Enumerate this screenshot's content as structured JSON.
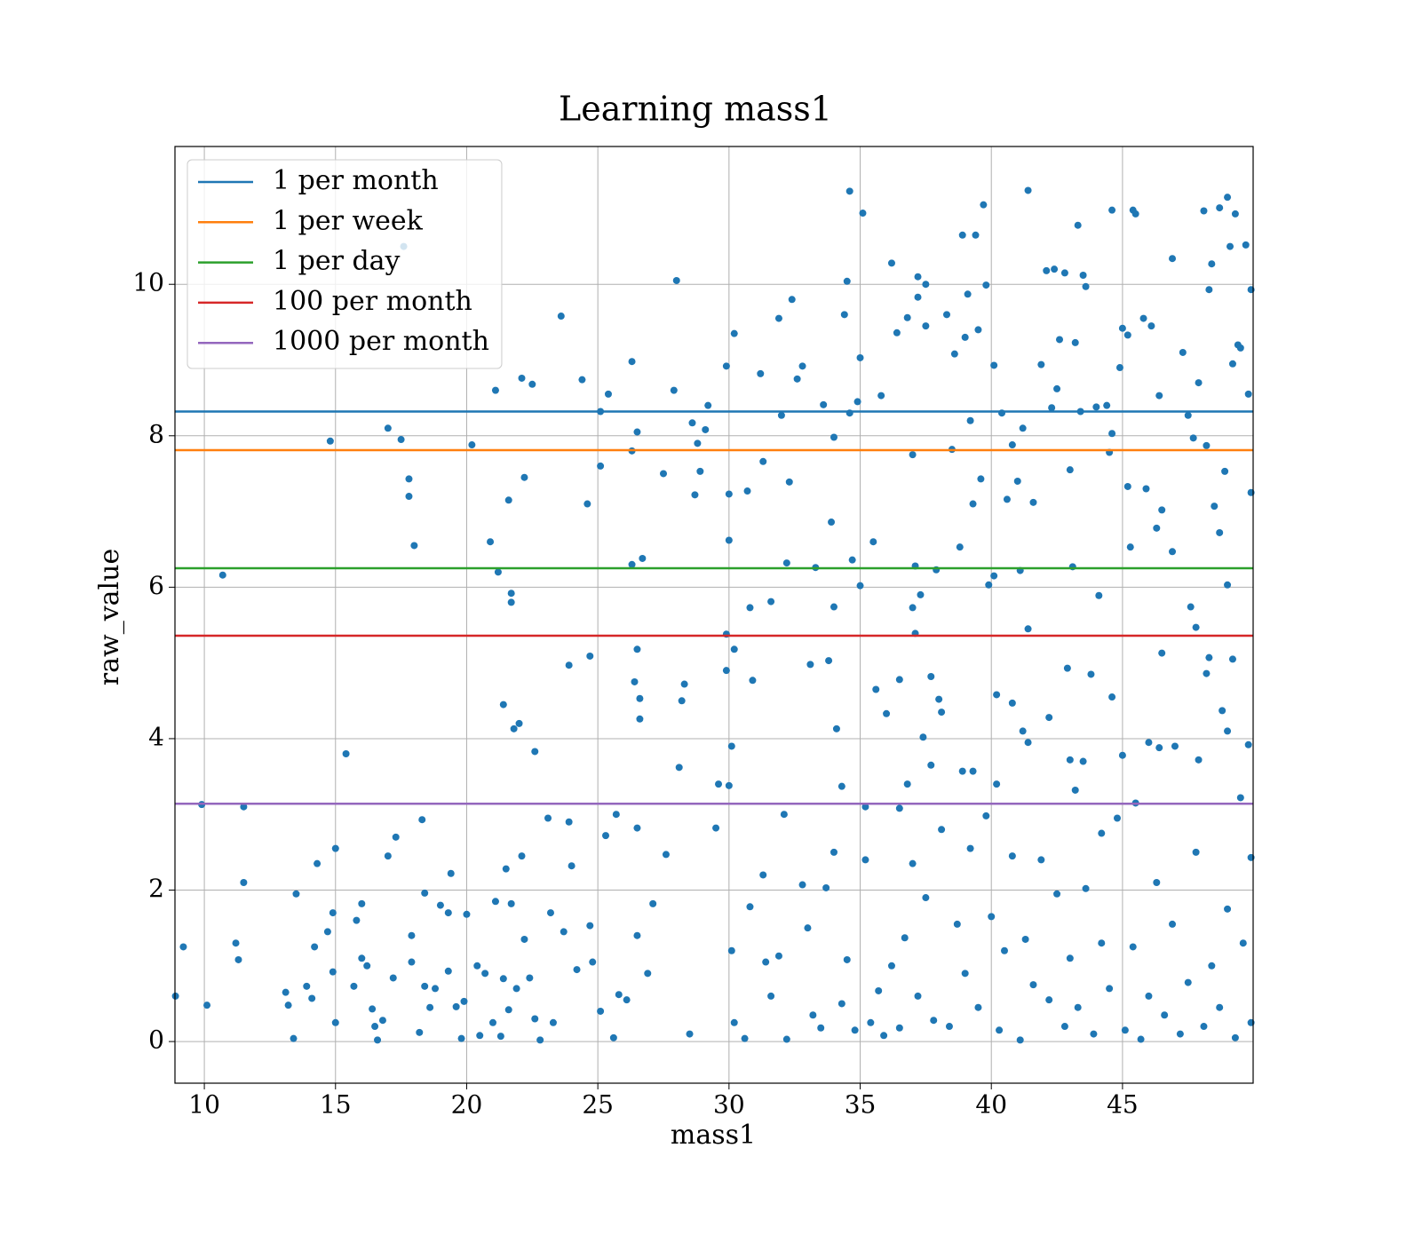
{
  "chart_data": {
    "type": "scatter",
    "title": "Learning mass1",
    "x_label": "mass1",
    "y_label": "raw_value",
    "point_color": "#1f77b4",
    "grid": true,
    "legend": "upper left",
    "xlim": [
      8.88,
      49.98
    ],
    "ylim": [
      -0.55,
      11.82
    ],
    "xticks": [
      10,
      15,
      20,
      25,
      30,
      35,
      40,
      45
    ],
    "yticks": [
      0,
      2,
      4,
      6,
      8,
      10
    ],
    "lines": [
      {
        "name": "1 per month",
        "color": "#1f77b4",
        "value": 8.32
      },
      {
        "name": "1 per week",
        "color": "#ff7f0e",
        "value": 7.81
      },
      {
        "name": "1 per day",
        "color": "#2ca02c",
        "value": 6.25
      },
      {
        "name": "100 per month",
        "color": "#d62728",
        "value": 5.36
      },
      {
        "name": "1000 per month",
        "color": "#9467bd",
        "value": 3.14
      }
    ],
    "x": [
      8.9,
      9.2,
      9.9,
      10.1,
      10.7,
      11.2,
      11.3,
      11.5,
      11.5,
      13.1,
      13.2,
      13.4,
      13.5,
      13.9,
      14.1,
      14.2,
      14.3,
      14.7,
      14.8,
      14.9,
      14.9,
      15.0,
      15.0,
      15.4,
      15.7,
      15.8,
      16.0,
      16.0,
      16.2,
      16.4,
      16.5,
      16.6,
      16.8,
      17.0,
      17.0,
      17.2,
      17.3,
      17.5,
      17.6,
      17.8,
      17.8,
      17.9,
      17.9,
      18.0,
      18.2,
      18.3,
      18.4,
      18.4,
      18.6,
      18.8,
      19.0,
      19.3,
      19.3,
      19.4,
      19.6,
      19.8,
      19.9,
      20.0,
      20.2,
      20.4,
      20.5,
      20.7,
      20.9,
      21.0,
      21.1,
      21.1,
      21.2,
      21.3,
      21.4,
      21.4,
      21.5,
      21.6,
      21.6,
      21.7,
      21.7,
      21.7,
      21.8,
      21.9,
      22.0,
      22.1,
      22.2,
      22.1,
      22.2,
      22.4,
      22.5,
      22.6,
      22.6,
      22.8,
      23.1,
      23.2,
      23.3,
      23.6,
      23.7,
      23.9,
      23.9,
      24.0,
      24.2,
      24.4,
      24.6,
      24.7,
      24.7,
      24.8,
      25.1,
      25.1,
      25.1,
      25.3,
      25.4,
      25.6,
      25.7,
      25.8,
      26.1,
      26.3,
      26.3,
      26.3,
      26.5,
      26.4,
      26.5,
      26.6,
      26.6,
      26.7,
      26.5,
      26.5,
      26.9,
      27.1,
      27.5,
      27.6,
      27.9,
      28.0,
      28.1,
      28.2,
      28.3,
      28.5,
      28.6,
      28.7,
      28.8,
      28.9,
      29.2,
      29.1,
      29.5,
      29.6,
      29.9,
      29.9,
      29.9,
      30.0,
      30.0,
      30.0,
      30.1,
      30.2,
      30.2,
      30.1,
      30.2,
      30.6,
      30.7,
      30.8,
      30.9,
      31.2,
      31.3,
      31.3,
      31.6,
      31.9,
      32.0,
      32.2,
      32.3,
      32.4,
      32.6,
      32.8,
      33.1,
      33.3,
      33.6,
      33.8,
      33.9,
      34.0,
      34.0,
      34.1,
      34.3,
      34.4,
      34.5,
      34.6,
      34.6,
      34.7,
      34.9,
      35.0,
      35.1,
      35.0,
      35.2,
      35.5,
      35.6,
      35.8,
      36.0,
      36.2,
      36.4,
      36.5,
      36.8,
      37.0,
      37.1,
      37.1,
      37.2,
      37.2,
      37.3,
      37.5,
      37.5,
      37.0,
      37.7,
      37.9,
      38.0,
      38.3,
      38.5,
      38.6,
      38.8,
      38.9,
      39.0,
      39.1,
      39.2,
      39.3,
      39.4,
      39.5,
      39.6,
      39.7,
      39.8,
      39.9,
      40.1,
      40.1,
      40.2,
      40.4,
      40.6,
      40.8,
      41.0,
      41.1,
      41.2,
      41.4,
      41.4,
      41.6,
      41.9,
      42.1,
      42.3,
      42.4,
      42.5,
      42.6,
      42.8,
      43.0,
      43.1,
      43.2,
      43.3,
      43.4,
      43.5,
      43.6,
      44.0,
      44.1,
      44.4,
      44.5,
      44.6,
      44.6,
      44.9,
      45.0,
      45.2,
      45.2,
      45.3,
      45.4,
      45.5,
      45.8,
      45.9,
      46.1,
      46.3,
      46.4,
      46.5,
      46.5,
      46.9,
      46.9,
      47.3,
      47.5,
      47.6,
      47.7,
      47.8,
      47.9,
      48.1,
      48.2,
      48.3,
      48.4,
      48.5,
      48.7,
      48.7,
      48.9,
      49.0,
      49.0,
      49.1,
      49.2,
      49.3,
      49.4,
      49.5,
      49.7,
      49.8,
      49.9,
      49.9,
      30.8,
      31.4,
      31.6,
      31.9,
      32.1,
      32.2,
      32.8,
      33.0,
      33.2,
      33.5,
      33.7,
      34.0,
      34.3,
      34.5,
      34.8,
      35.2,
      35.4,
      35.7,
      35.9,
      36.2,
      36.5,
      36.7,
      37.0,
      37.2,
      37.5,
      37.8,
      38.1,
      38.4,
      38.7,
      39.0,
      39.2,
      39.5,
      39.8,
      40.0,
      40.3,
      40.5,
      40.8,
      41.1,
      41.3,
      41.6,
      41.9,
      42.2,
      42.5,
      42.8,
      43.0,
      43.3,
      43.6,
      43.9,
      44.2,
      44.5,
      44.8,
      45.1,
      45.4,
      45.7,
      46.0,
      46.3,
      46.6,
      46.9,
      47.2,
      47.5,
      47.8,
      48.1,
      48.4,
      48.7,
      49.0,
      49.3,
      49.6,
      49.9,
      49.9,
      36.5,
      36.8,
      37.4,
      37.7,
      38.1,
      38.9,
      39.3,
      40.2,
      40.8,
      41.2,
      41.4,
      42.2,
      42.9,
      43.0,
      43.2,
      43.5,
      43.8,
      44.2,
      44.6,
      45.0,
      45.5,
      46.0,
      46.4,
      47.0,
      47.9,
      48.2,
      48.3,
      48.8,
      49.0,
      49.2,
      49.5,
      49.8
    ],
    "values": [
      0.6,
      1.25,
      3.13,
      0.48,
      6.16,
      1.3,
      1.08,
      2.1,
      3.1,
      0.65,
      0.48,
      0.04,
      1.95,
      0.73,
      0.57,
      1.25,
      2.35,
      1.45,
      7.93,
      0.92,
      1.7,
      2.55,
      0.25,
      3.8,
      0.73,
      1.6,
      1.1,
      1.82,
      1.0,
      0.43,
      0.2,
      0.02,
      0.28,
      2.45,
      8.1,
      0.84,
      2.7,
      7.95,
      10.5,
      7.43,
      7.2,
      1.4,
      1.05,
      6.55,
      0.12,
      2.93,
      0.73,
      1.96,
      0.45,
      0.7,
      1.8,
      0.93,
      1.7,
      2.22,
      0.46,
      0.04,
      0.53,
      1.68,
      7.88,
      1.0,
      0.08,
      0.9,
      6.6,
      0.25,
      8.6,
      1.85,
      6.2,
      0.07,
      0.83,
      4.45,
      2.28,
      7.15,
      0.42,
      5.8,
      5.92,
      1.82,
      4.13,
      0.7,
      4.2,
      8.76,
      7.45,
      2.45,
      1.35,
      0.84,
      8.68,
      3.83,
      0.3,
      0.02,
      2.95,
      1.7,
      0.25,
      9.58,
      1.45,
      4.97,
      2.9,
      2.32,
      0.95,
      8.74,
      7.1,
      1.53,
      5.09,
      1.05,
      7.6,
      8.32,
      0.4,
      2.72,
      8.55,
      0.05,
      3.0,
      0.62,
      0.55,
      7.8,
      6.3,
      8.98,
      8.05,
      4.75,
      5.18,
      4.53,
      4.26,
      6.38,
      2.82,
      1.4,
      0.9,
      1.82,
      7.5,
      2.47,
      8.6,
      10.05,
      3.62,
      4.5,
      4.72,
      0.1,
      8.17,
      7.22,
      7.9,
      7.53,
      8.4,
      8.08,
      2.82,
      3.4,
      8.92,
      5.38,
      4.9,
      7.23,
      6.62,
      3.38,
      3.9,
      5.18,
      9.35,
      1.2,
      0.25,
      0.04,
      7.27,
      5.73,
      4.77,
      8.82,
      7.66,
      2.2,
      5.81,
      9.55,
      8.27,
      6.32,
      7.39,
      9.8,
      8.75,
      8.92,
      4.98,
      6.26,
      8.41,
      5.03,
      6.86,
      5.74,
      7.98,
      4.13,
      3.37,
      9.6,
      10.04,
      11.23,
      8.3,
      6.36,
      8.45,
      9.03,
      10.94,
      6.02,
      3.1,
      6.6,
      4.65,
      8.53,
      4.33,
      10.28,
      9.36,
      4.78,
      9.56,
      5.73,
      5.39,
      6.28,
      9.83,
      10.1,
      5.9,
      9.45,
      10.0,
      7.75,
      4.82,
      6.23,
      4.52,
      9.6,
      7.82,
      9.08,
      6.53,
      10.65,
      9.3,
      9.87,
      8.2,
      7.1,
      10.65,
      9.4,
      7.43,
      11.05,
      9.99,
      6.03,
      6.15,
      8.93,
      3.4,
      8.3,
      7.16,
      7.88,
      7.4,
      6.22,
      8.1,
      5.45,
      11.24,
      7.12,
      8.94,
      10.18,
      8.37,
      10.2,
      8.62,
      9.27,
      10.15,
      7.55,
      6.27,
      9.23,
      10.78,
      8.32,
      10.12,
      9.97,
      8.38,
      5.89,
      8.4,
      7.78,
      10.98,
      8.03,
      8.9,
      9.42,
      7.33,
      9.33,
      6.53,
      10.98,
      10.93,
      9.55,
      7.3,
      9.45,
      6.78,
      8.53,
      7.02,
      5.13,
      6.47,
      10.34,
      9.1,
      8.27,
      5.74,
      7.97,
      5.47,
      8.7,
      10.97,
      7.87,
      9.93,
      10.27,
      7.07,
      11.01,
      6.72,
      7.53,
      6.03,
      11.15,
      10.5,
      8.95,
      10.93,
      9.2,
      9.16,
      10.52,
      8.55,
      7.25,
      9.93,
      1.78,
      1.05,
      0.6,
      1.13,
      3.0,
      0.03,
      2.07,
      1.5,
      0.35,
      0.18,
      2.03,
      2.5,
      0.5,
      1.08,
      0.15,
      2.4,
      0.25,
      0.67,
      0.08,
      1.0,
      0.18,
      1.37,
      2.35,
      0.6,
      1.9,
      0.28,
      2.8,
      0.2,
      1.55,
      0.9,
      2.55,
      0.45,
      2.98,
      1.65,
      0.15,
      1.2,
      2.45,
      0.02,
      1.35,
      0.75,
      2.4,
      0.55,
      1.95,
      0.2,
      1.1,
      0.45,
      2.02,
      0.1,
      1.3,
      0.7,
      2.95,
      0.15,
      1.25,
      0.03,
      0.6,
      2.1,
      0.35,
      1.55,
      0.1,
      0.78,
      2.5,
      0.2,
      1.0,
      0.45,
      1.75,
      0.05,
      1.3,
      0.25,
      2.43,
      3.08,
      3.4,
      4.02,
      3.65,
      4.35,
      3.57,
      3.57,
      4.58,
      4.47,
      4.1,
      3.95,
      4.28,
      4.93,
      3.72,
      3.32,
      3.7,
      4.85,
      2.75,
      4.55,
      3.78,
      3.15,
      3.95,
      3.88,
      3.9,
      3.72,
      4.86,
      5.07,
      4.37,
      4.1,
      5.05,
      3.22,
      3.92
    ]
  }
}
